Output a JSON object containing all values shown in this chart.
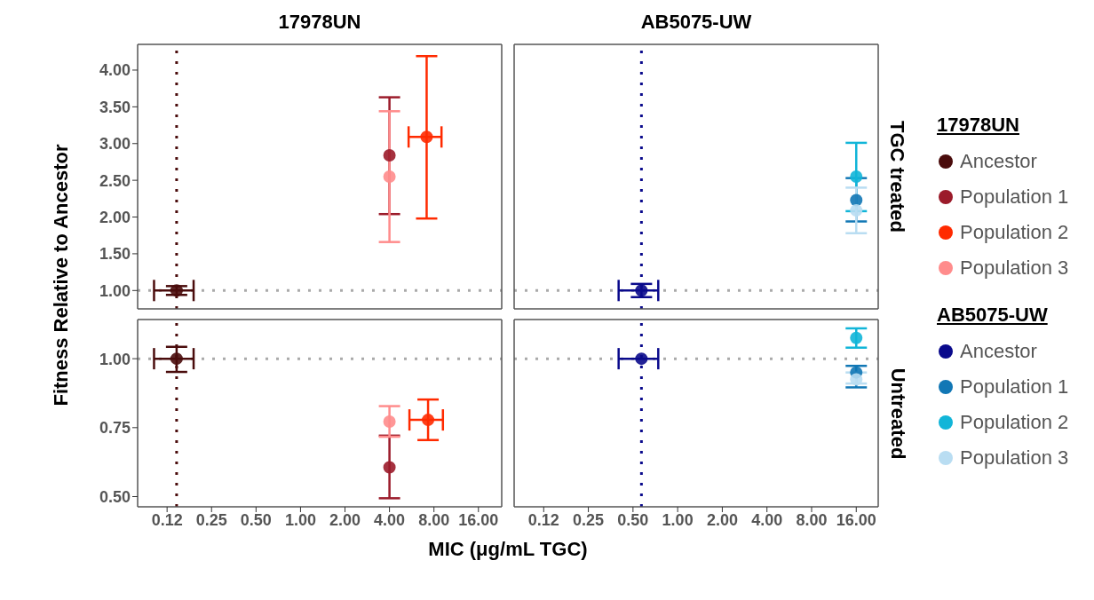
{
  "chart_data": [
    {
      "type": "scatter",
      "title": "17978UN",
      "ylabel": "Fitness Relative to Ancestor",
      "legend": "right",
      "legend_title": "17978UN",
      "marker": "circle",
      "log": "x",
      "tick_labels": "y",
      "xlim": [
        0.079,
        23.0
      ],
      "ylim": [
        0.75,
        4.35
      ],
      "yticks": [
        {
          "value": 1,
          "label": "1.00"
        },
        {
          "value": 1.5,
          "label": "1.50"
        },
        {
          "value": 2,
          "label": "2.00"
        },
        {
          "value": 2.5,
          "label": "2.50"
        },
        {
          "value": 3,
          "label": "3.00"
        },
        {
          "value": 3.5,
          "label": "3.50"
        },
        {
          "value": 4,
          "label": "4.00"
        }
      ],
      "ref_lines": [
        {
          "axis": "x",
          "value": 0.145,
          "color": "#4a0c0c",
          "line_style": "dotted"
        },
        {
          "axis": "y",
          "value": 1,
          "color": "#aaaaaa",
          "line_style": "dotted"
        }
      ],
      "series": [
        {
          "name": "Ancestor",
          "color": "#4a0c0c",
          "x": [
            0.145
          ],
          "values": [
            1.0
          ],
          "errors": [
            [
              0.94,
              1.06
            ]
          ],
          "xerrors": [
            [
              0.102,
              0.189
            ]
          ]
        },
        {
          "name": "Population 1",
          "color": "#9b1b2a",
          "x": [
            4
          ],
          "values": [
            2.84
          ],
          "errors": [
            [
              2.04,
              3.63
            ]
          ]
        },
        {
          "name": "Population 2",
          "color": "#ff2a00",
          "x": [
            7.14
          ],
          "values": [
            3.09
          ],
          "errors": [
            [
              1.98,
              4.19
            ]
          ],
          "xerrors": [
            [
              5.39,
              9.0
            ]
          ]
        },
        {
          "name": "Population 3",
          "color": "#ff8c8c",
          "x": [
            4
          ],
          "values": [
            2.55
          ],
          "errors": [
            [
              1.66,
              3.44
            ]
          ]
        }
      ]
    },
    {
      "type": "scatter",
      "title": "AB5075-UW",
      "legend": "right",
      "legend_title": "AB5075-UW",
      "annotations": [
        "TGC treated"
      ],
      "marker": "circle",
      "log": "x",
      "tick_labels": false,
      "xlim": [
        0.079,
        22.5
      ],
      "ylim": [
        0.75,
        4.35
      ],
      "ref_lines": [
        {
          "axis": "x",
          "value": 0.57,
          "color": "#0a0a8c",
          "line_style": "dotted"
        },
        {
          "axis": "y",
          "value": 1,
          "color": "#aaaaaa",
          "line_style": "dotted"
        }
      ],
      "series": [
        {
          "name": "Ancestor",
          "color": "#0a0a8c",
          "x": [
            0.57
          ],
          "values": [
            1.0
          ],
          "errors": [
            [
              0.91,
              1.09
            ]
          ],
          "xerrors": [
            [
              0.4,
              0.74
            ]
          ]
        },
        {
          "name": "Population 1",
          "color": "#1177b5",
          "x": [
            16
          ],
          "values": [
            2.23
          ],
          "errors": [
            [
              1.94,
              2.53
            ]
          ]
        },
        {
          "name": "Population 2",
          "color": "#11b5d8",
          "x": [
            16
          ],
          "values": [
            2.55
          ],
          "errors": [
            [
              2.08,
              3.01
            ]
          ]
        },
        {
          "name": "Population 3",
          "color": "#b9ddf2",
          "x": [
            16
          ],
          "values": [
            2.09
          ],
          "errors": [
            [
              1.78,
              2.4
            ]
          ]
        }
      ]
    },
    {
      "type": "scatter",
      "xlabel": "MIC (μg/mL TGC)",
      "marker": "circle",
      "log": "x",
      "xlim": [
        0.079,
        23.0
      ],
      "xticks": [
        {
          "value": 0.125,
          "label": "0.12"
        },
        {
          "value": 0.25,
          "label": "0.25"
        },
        {
          "value": 0.5,
          "label": "0.50"
        },
        {
          "value": 1,
          "label": "1.00"
        },
        {
          "value": 2,
          "label": "2.00"
        },
        {
          "value": 4,
          "label": "4.00"
        },
        {
          "value": 8,
          "label": "8.00"
        },
        {
          "value": 16,
          "label": "16.00"
        }
      ],
      "ylim": [
        0.463,
        1.142
      ],
      "yticks": [
        {
          "value": 0.5,
          "label": "0.50"
        },
        {
          "value": 0.75,
          "label": "0.75"
        },
        {
          "value": 1,
          "label": "1.00"
        }
      ],
      "ref_lines": [
        {
          "axis": "x",
          "value": 0.145,
          "color": "#4a0c0c",
          "line_style": "dotted"
        },
        {
          "axis": "y",
          "value": 1,
          "color": "#aaaaaa",
          "line_style": "dotted"
        }
      ],
      "series": [
        {
          "color": "#4a0c0c",
          "x": [
            0.145
          ],
          "values": [
            1.0
          ],
          "errors": [
            [
              0.952,
              1.043
            ]
          ],
          "xerrors": [
            [
              0.102,
              0.189
            ]
          ]
        },
        {
          "color": "#9b1b2a",
          "x": [
            4
          ],
          "values": [
            0.606
          ],
          "errors": [
            [
              0.494,
              0.721
            ]
          ]
        },
        {
          "color": "#ff2a00",
          "x": [
            7.3
          ],
          "values": [
            0.778
          ],
          "errors": [
            [
              0.705,
              0.852
            ]
          ],
          "xerrors": [
            [
              5.46,
              9.2
            ]
          ]
        },
        {
          "color": "#ff8c8c",
          "x": [
            4
          ],
          "values": [
            0.772
          ],
          "errors": [
            [
              0.717,
              0.828
            ]
          ]
        }
      ]
    },
    {
      "type": "scatter",
      "annotations": [
        "Untreated"
      ],
      "marker": "circle",
      "log": "x",
      "tick_labels": "x",
      "xlim": [
        0.079,
        22.5
      ],
      "xticks": [
        {
          "value": 0.125,
          "label": "0.12"
        },
        {
          "value": 0.25,
          "label": "0.25"
        },
        {
          "value": 0.5,
          "label": "0.50"
        },
        {
          "value": 1,
          "label": "1.00"
        },
        {
          "value": 2,
          "label": "2.00"
        },
        {
          "value": 4,
          "label": "4.00"
        },
        {
          "value": 8,
          "label": "8.00"
        },
        {
          "value": 16,
          "label": "16.00"
        }
      ],
      "ylim": [
        0.463,
        1.142
      ],
      "ref_lines": [
        {
          "axis": "x",
          "value": 0.57,
          "color": "#0a0a8c",
          "line_style": "dotted"
        },
        {
          "axis": "y",
          "value": 1,
          "color": "#aaaaaa",
          "line_style": "dotted"
        }
      ],
      "series": [
        {
          "color": "#0a0a8c",
          "x": [
            0.57
          ],
          "values": [
            1.0
          ],
          "xerrors": [
            [
              0.4,
              0.74
            ]
          ]
        },
        {
          "color": "#1177b5",
          "x": [
            16
          ],
          "values": [
            0.95
          ],
          "errors": [
            [
              0.896,
              0.974
            ]
          ]
        },
        {
          "color": "#11b5d8",
          "x": [
            16
          ],
          "values": [
            1.075
          ],
          "errors": [
            [
              1.04,
              1.11
            ]
          ]
        },
        {
          "color": "#b9ddf2",
          "x": [
            16
          ],
          "values": [
            0.925
          ],
          "errors": [
            [
              0.91,
              0.95
            ]
          ]
        }
      ]
    }
  ]
}
